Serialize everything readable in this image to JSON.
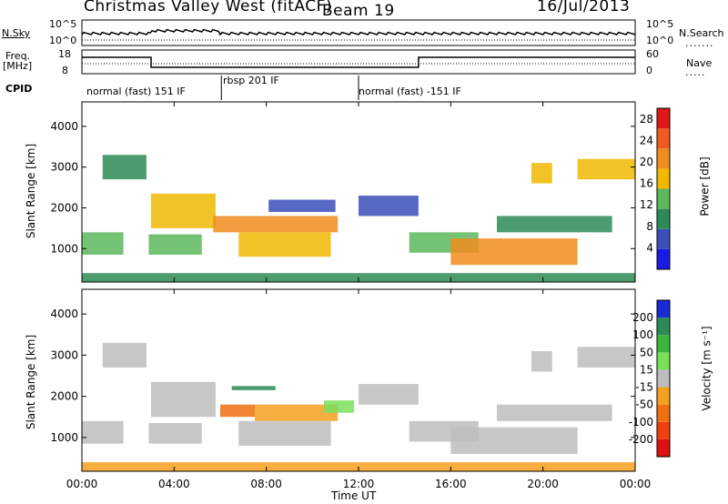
{
  "header": {
    "station": "Christmas Valley West (fitACF)",
    "beam": "Beam 19",
    "date": "16/Jul/2013"
  },
  "top_panels": {
    "nsky_label": "N.Sky",
    "nsearch_label": "N.Search",
    "nsky_ticks": [
      "10^5",
      "10^0"
    ],
    "nsearch_ticks": [
      "10^5",
      "10^0"
    ],
    "freq_label_1": "Freq.",
    "freq_label_2": "[MHz]",
    "freq_ticks": [
      "18",
      "8"
    ],
    "nave_label": "Nave",
    "nave_ticks": [
      "60",
      "0"
    ],
    "cpid_label": "CPID"
  },
  "cpid_segments": [
    {
      "label": "normal (fast) 151 IF",
      "start_hour": 0.0,
      "end_hour": 6.05
    },
    {
      "label": "rbsp 201 IF",
      "start_hour": 6.05,
      "end_hour": 12.0
    },
    {
      "label": "normal (fast) -151 IF",
      "start_hour": 12.0,
      "end_hour": 24.0
    }
  ],
  "chart_data": [
    {
      "type": "heatmap",
      "panel": "power",
      "ylabel": "Slant Range [km]",
      "xlabel": "Time UT",
      "x_ticks": [
        "00:00",
        "04:00",
        "08:00",
        "12:00",
        "16:00",
        "20:00",
        "00:00"
      ],
      "xlim_hours": [
        0,
        24
      ],
      "ylim": [
        180,
        4600
      ],
      "y_ticks": [
        1000,
        2000,
        3000,
        4000
      ],
      "colorbar": {
        "label": "Power [dB]",
        "ticks": [
          4,
          8,
          12,
          16,
          20,
          24,
          28
        ],
        "range": [
          0,
          30
        ],
        "colors": [
          "#1a1ae6",
          "#3a4fb8",
          "#2e8b57",
          "#5cb85c",
          "#f0b800",
          "#f08c1e",
          "#f05a1e",
          "#e01818"
        ]
      },
      "echo_regions": [
        {
          "t0": 0.0,
          "t1": 1.8,
          "r0": 850,
          "r1": 1400,
          "level": 14
        },
        {
          "t0": 0.9,
          "t1": 2.8,
          "r0": 2700,
          "r1": 3300,
          "level": 8
        },
        {
          "t0": 3.0,
          "t1": 5.8,
          "r0": 1500,
          "r1": 2350,
          "level": 18
        },
        {
          "t0": 2.9,
          "t1": 5.2,
          "r0": 850,
          "r1": 1350,
          "level": 12
        },
        {
          "t0": 5.7,
          "t1": 11.1,
          "r0": 1400,
          "r1": 1800,
          "level": 21
        },
        {
          "t0": 6.8,
          "t1": 10.8,
          "r0": 800,
          "r1": 1400,
          "level": 17
        },
        {
          "t0": 8.1,
          "t1": 11.0,
          "r0": 1900,
          "r1": 2200,
          "level": 7
        },
        {
          "t0": 12.0,
          "t1": 14.6,
          "r0": 1800,
          "r1": 2300,
          "level": 6
        },
        {
          "t0": 14.2,
          "t1": 17.2,
          "r0": 900,
          "r1": 1400,
          "level": 12
        },
        {
          "t0": 16.0,
          "t1": 21.5,
          "r0": 600,
          "r1": 1250,
          "level": 19
        },
        {
          "t0": 18.0,
          "t1": 23.0,
          "r0": 1400,
          "r1": 1800,
          "level": 9
        },
        {
          "t0": 19.5,
          "t1": 20.4,
          "r0": 2600,
          "r1": 3100,
          "level": 15
        },
        {
          "t0": 21.5,
          "t1": 24.0,
          "r0": 2700,
          "r1": 3200,
          "level": 15
        },
        {
          "t0": 0.0,
          "t1": 24.0,
          "r0": 180,
          "r1": 400,
          "level": 10
        }
      ]
    },
    {
      "type": "heatmap",
      "panel": "velocity",
      "ylabel": "Slant Range [km]",
      "xlabel": "Time UT",
      "x_ticks": [
        "00:00",
        "04:00",
        "08:00",
        "12:00",
        "16:00",
        "20:00",
        "00:00"
      ],
      "xlim_hours": [
        0,
        24
      ],
      "ylim": [
        180,
        4600
      ],
      "y_ticks": [
        1000,
        2000,
        3000,
        4000
      ],
      "colorbar": {
        "label": "Velocity [m s⁻¹]",
        "ticks": [
          200,
          100,
          50,
          15,
          -15,
          -50,
          -100,
          -200
        ],
        "colors": [
          "#1a2ad6",
          "#2e8b57",
          "#3cb43c",
          "#7ae05a",
          "#bdbdbd",
          "#f5a020",
          "#f07010",
          "#f04010",
          "#e01010"
        ]
      },
      "echo_regions": [
        {
          "t0": 0.0,
          "t1": 1.8,
          "r0": 850,
          "r1": 1400,
          "vel": 0
        },
        {
          "t0": 0.9,
          "t1": 2.8,
          "r0": 2700,
          "r1": 3300,
          "vel": 0
        },
        {
          "t0": 3.0,
          "t1": 5.8,
          "r0": 1500,
          "r1": 2350,
          "vel": 0
        },
        {
          "t0": 2.9,
          "t1": 5.2,
          "r0": 850,
          "r1": 1350,
          "vel": 0
        },
        {
          "t0": 6.0,
          "t1": 7.5,
          "r0": 1500,
          "r1": 1800,
          "vel": -60
        },
        {
          "t0": 7.5,
          "t1": 11.1,
          "r0": 1400,
          "r1": 1800,
          "vel": -30
        },
        {
          "t0": 6.8,
          "t1": 10.8,
          "r0": 800,
          "r1": 1400,
          "vel": 0
        },
        {
          "t0": 10.5,
          "t1": 11.8,
          "r0": 1600,
          "r1": 1900,
          "vel": 30
        },
        {
          "t0": 6.5,
          "t1": 8.4,
          "r0": 2150,
          "r1": 2250,
          "vel": 150
        },
        {
          "t0": 12.0,
          "t1": 14.6,
          "r0": 1800,
          "r1": 2300,
          "vel": 0
        },
        {
          "t0": 14.2,
          "t1": 17.2,
          "r0": 900,
          "r1": 1400,
          "vel": 0
        },
        {
          "t0": 16.0,
          "t1": 21.5,
          "r0": 600,
          "r1": 1250,
          "vel": 0
        },
        {
          "t0": 18.0,
          "t1": 23.0,
          "r0": 1400,
          "r1": 1800,
          "vel": 0
        },
        {
          "t0": 19.5,
          "t1": 20.4,
          "r0": 2600,
          "r1": 3100,
          "vel": 0
        },
        {
          "t0": 21.5,
          "t1": 24.0,
          "r0": 2700,
          "r1": 3200,
          "vel": 0
        },
        {
          "t0": 0.0,
          "t1": 24.0,
          "r0": 180,
          "r1": 400,
          "vel": -30
        }
      ]
    }
  ]
}
